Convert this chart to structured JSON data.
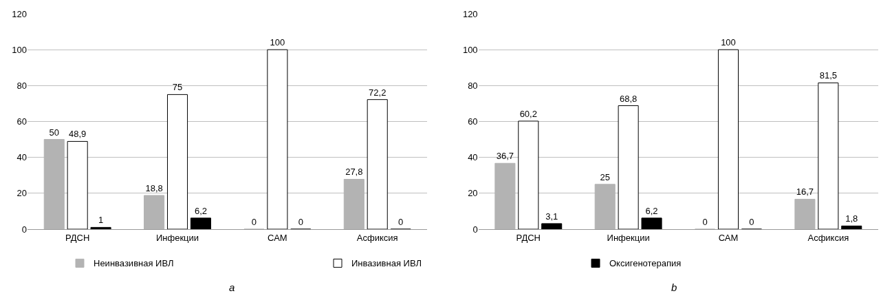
{
  "chart_data": [
    {
      "type": "bar",
      "categories": [
        "РДСН",
        "Инфекции",
        "САМ",
        "Асфиксия"
      ],
      "ylim": [
        0,
        120
      ],
      "yticks": [
        0,
        20,
        40,
        60,
        80,
        100,
        120
      ],
      "grid": "y",
      "legend": "bottom",
      "annotations": [
        "a"
      ],
      "series": [
        {
          "name": "Неинвазивная ИВЛ",
          "color": "#b3b3b3",
          "values": [
            50,
            18.8,
            0,
            27.8
          ],
          "value_labels": [
            "50",
            "18,8",
            "0",
            "27,8"
          ]
        },
        {
          "name": "Инвазивная ИВЛ",
          "color": "#ffffff",
          "values": [
            48.9,
            75,
            100,
            72.2
          ],
          "value_labels": [
            "48,9",
            "75",
            "100",
            "72,2"
          ]
        },
        {
          "name": "Оксигенотерапия",
          "color": "#000000",
          "values": [
            1,
            6.2,
            0,
            0
          ],
          "value_labels": [
            "1",
            "6,2",
            "0",
            "0"
          ]
        }
      ]
    },
    {
      "type": "bar",
      "categories": [
        "РДСН",
        "Инфекции",
        "САМ",
        "Асфиксия"
      ],
      "ylim": [
        0,
        120
      ],
      "yticks": [
        0,
        20,
        40,
        60,
        80,
        100,
        120
      ],
      "grid": "y",
      "annotations": [
        "b"
      ],
      "series": [
        {
          "color": "#b3b3b3",
          "values": [
            36.7,
            25,
            0,
            16.7
          ],
          "value_labels": [
            "36,7",
            "25",
            "0",
            "16,7"
          ]
        },
        {
          "color": "#ffffff",
          "values": [
            60.2,
            68.8,
            100,
            81.5
          ],
          "value_labels": [
            "60,2",
            "68,8",
            "100",
            "81,5"
          ]
        },
        {
          "color": "#000000",
          "values": [
            3.1,
            6.2,
            0,
            1.8
          ],
          "value_labels": [
            "3,1",
            "6,2",
            "0",
            "1,8"
          ]
        }
      ]
    }
  ]
}
